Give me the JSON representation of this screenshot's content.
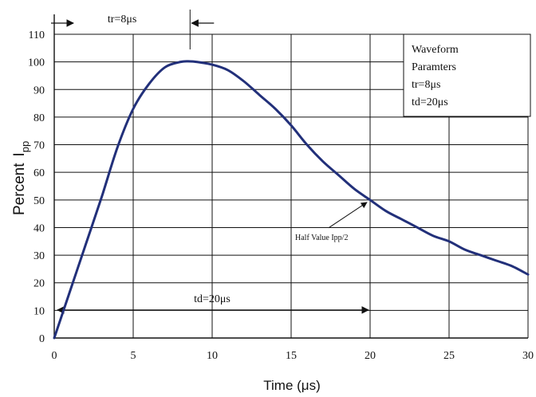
{
  "chart_data": {
    "type": "line",
    "xlabel": "Time (μs)",
    "ylabel_main": "Percent",
    "ylabel_sub": "I",
    "ylabel_subscript": "pp",
    "xlim": [
      0,
      30
    ],
    "ylim": [
      0,
      110
    ],
    "grid": true,
    "x_ticks": [
      0,
      5,
      10,
      15,
      20,
      25,
      30
    ],
    "y_ticks": [
      0,
      10,
      20,
      30,
      40,
      50,
      60,
      70,
      80,
      90,
      100,
      110
    ],
    "series": [
      {
        "color": "#22307a",
        "x": [
          0,
          1,
          2,
          3,
          4,
          5,
          6,
          7,
          8,
          8.6,
          9,
          10,
          11,
          12,
          13,
          14,
          15,
          16,
          17,
          18,
          19,
          20,
          21,
          22,
          23,
          24,
          25,
          26,
          27,
          28,
          29,
          30
        ],
        "y": [
          0,
          17,
          34,
          51,
          69,
          83,
          92,
          98,
          100,
          100.2,
          100,
          99,
          97,
          93,
          88,
          83,
          77,
          70,
          64,
          59,
          54,
          50,
          46,
          43,
          40,
          37,
          35,
          32,
          30,
          28,
          26,
          23
        ]
      }
    ],
    "annotations": {
      "rise": {
        "text": "tr=8μs",
        "x_start": 0,
        "x_end": 8.6
      },
      "decay": {
        "text": "td=20μs",
        "x_start": 0,
        "x_end": 20,
        "y": 11
      },
      "half_value": {
        "text": "Half Value Ipp/2",
        "x": 20,
        "y": 50
      }
    },
    "legend": {
      "position": "top-right",
      "lines": [
        "Waveform",
        "Paramters",
        "tr=8μs",
        "td=20μs"
      ]
    }
  }
}
